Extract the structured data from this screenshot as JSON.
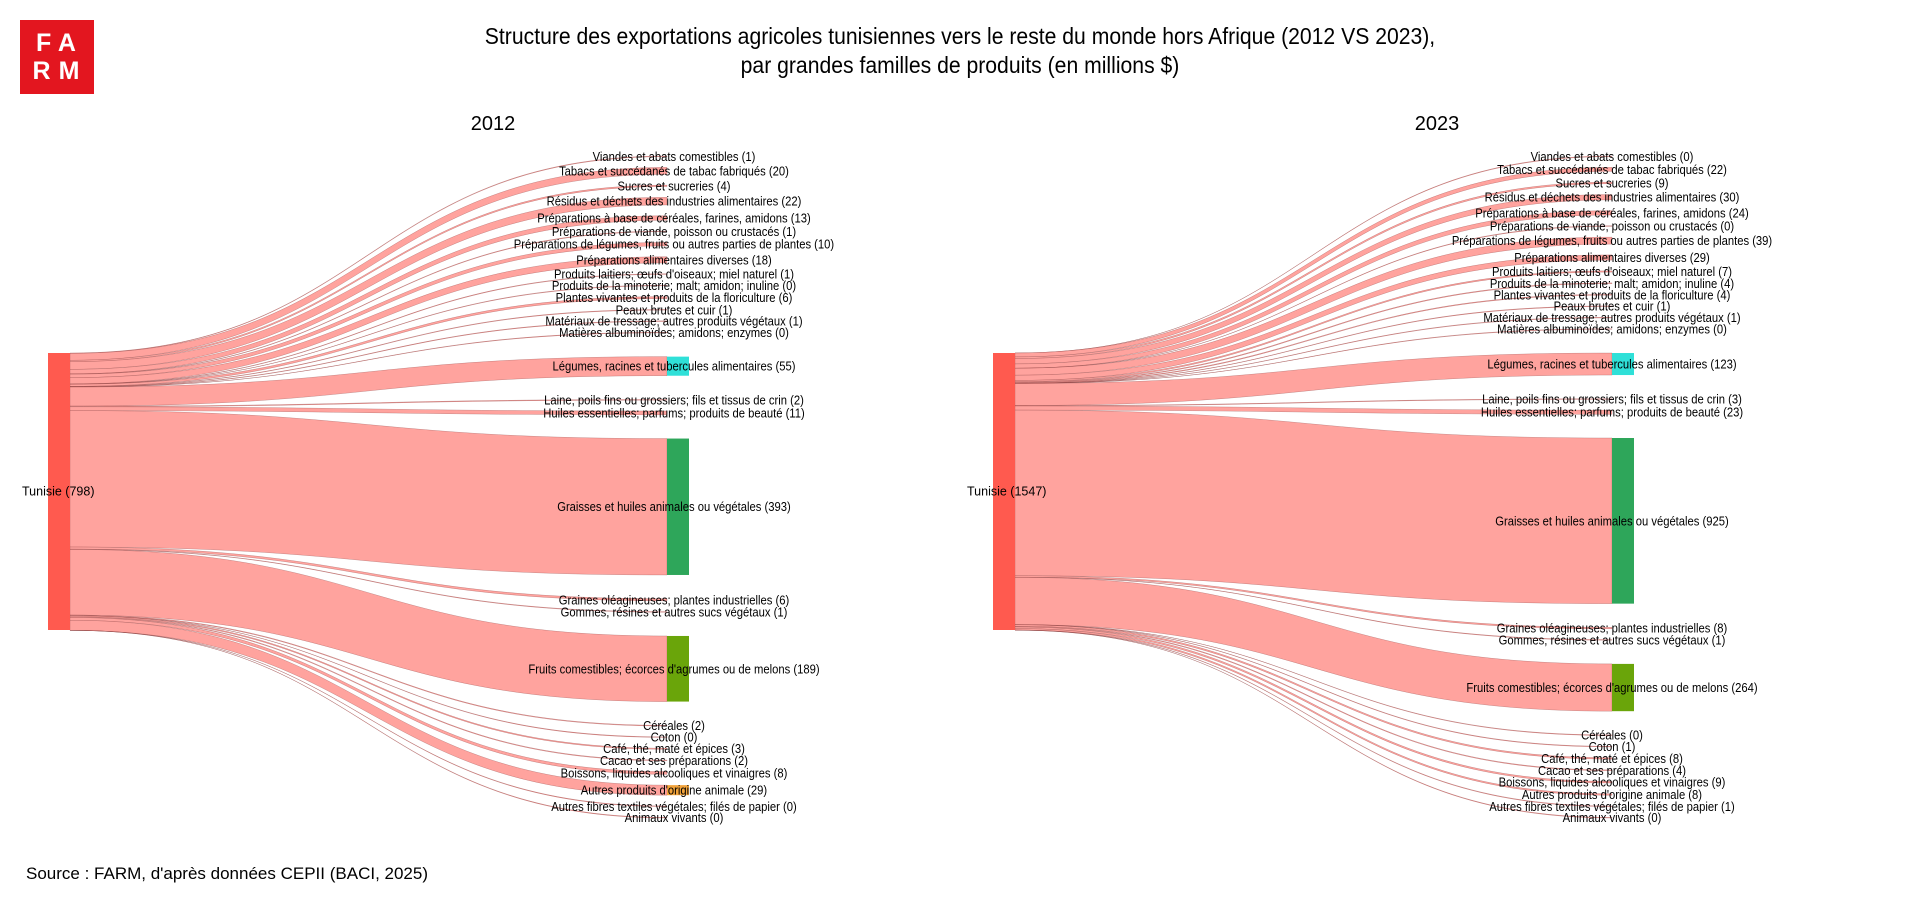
{
  "logo": {
    "line1": "FA",
    "line2": "RM",
    "color": "#e3161f"
  },
  "title": {
    "line1": "Structure des exportations agricoles tunisiennes vers le reste du monde hors Afrique (2012 VS 2023),",
    "line2": "par grandes familles de produits (en millions $)"
  },
  "source": "Source : FARM, d'après données CEPII (BACI, 2025)",
  "chart_data": [
    {
      "type": "sankey",
      "title": "2012",
      "source": {
        "label": "Tunisie (798)",
        "value": 798,
        "color": "#ff5a4f"
      },
      "link_color": "#ff9e99",
      "targets": [
        {
          "label": "Viandes et abats comestibles (1)",
          "value": 1
        },
        {
          "label": "Tabacs et succédanés de tabac fabriqués (20)",
          "value": 20
        },
        {
          "label": "Sucres et sucreries (4)",
          "value": 4
        },
        {
          "label": "Résidus et déchets des industries alimentaires (22)",
          "value": 22
        },
        {
          "label": "Préparations à base de céréales, farines, amidons (13)",
          "value": 13
        },
        {
          "label": "Préparations de viande, poisson ou crustacés (1)",
          "value": 1
        },
        {
          "label": "Préparations de légumes, fruits ou autres parties de plantes (10)",
          "value": 10
        },
        {
          "label": "Préparations alimentaires diverses (18)",
          "value": 18
        },
        {
          "label": "Produits laitiers; œufs d'oiseaux; miel naturel (1)",
          "value": 1
        },
        {
          "label": "Produits de la minoterie; malt; amidon; inuline (0)",
          "value": 0
        },
        {
          "label": "Plantes vivantes et produits de la floriculture (6)",
          "value": 6
        },
        {
          "label": "Peaux brutes et cuir (1)",
          "value": 1
        },
        {
          "label": "Matériaux de tressage; autres produits végétaux (1)",
          "value": 1
        },
        {
          "label": "Matières albuminoïdes; amidons; enzymes (0)",
          "value": 0
        },
        {
          "label": "Légumes, racines et tubercules alimentaires (55)",
          "value": 55,
          "color": "#2fe0d8"
        },
        {
          "label": "Laine, poils fins ou grossiers; fils et tissus de crin (2)",
          "value": 2
        },
        {
          "label": "Huiles essentielles; parfums; produits de beauté (11)",
          "value": 11
        },
        {
          "label": "Graisses et huiles animales ou végétales (393)",
          "value": 393,
          "color": "#2ea65a"
        },
        {
          "label": "Graines oléagineuses; plantes industrielles (6)",
          "value": 6
        },
        {
          "label": "Gommes, résines et autres sucs végétaux (1)",
          "value": 1
        },
        {
          "label": "Fruits comestibles; écorces d'agrumes ou de melons (189)",
          "value": 189,
          "color": "#6aa50a"
        },
        {
          "label": "Céréales (2)",
          "value": 2
        },
        {
          "label": "Coton (0)",
          "value": 0
        },
        {
          "label": "Café, thé, maté et épices (3)",
          "value": 3
        },
        {
          "label": "Cacao et ses préparations (2)",
          "value": 2
        },
        {
          "label": "Boissons, liquides alcooliques et vinaigres (8)",
          "value": 8
        },
        {
          "label": "Autres produits d'origine animale (29)",
          "value": 29,
          "color": "#f2a33a"
        },
        {
          "label": "Autres fibres textiles végétales; filés de papier (0)",
          "value": 0
        },
        {
          "label": "Animaux vivants (0)",
          "value": 0
        }
      ]
    },
    {
      "type": "sankey",
      "title": "2023",
      "source": {
        "label": "Tunisie (1547)",
        "value": 1547,
        "color": "#ff5a4f"
      },
      "link_color": "#ff9e99",
      "targets": [
        {
          "label": "Viandes et abats comestibles (0)",
          "value": 0
        },
        {
          "label": "Tabacs et succédanés de tabac fabriqués (22)",
          "value": 22
        },
        {
          "label": "Sucres et sucreries (9)",
          "value": 9
        },
        {
          "label": "Résidus et déchets des industries alimentaires (30)",
          "value": 30
        },
        {
          "label": "Préparations à base de céréales, farines, amidons (24)",
          "value": 24
        },
        {
          "label": "Préparations de viande, poisson ou crustacés (0)",
          "value": 0
        },
        {
          "label": "Préparations de légumes, fruits ou autres parties de plantes (39)",
          "value": 39
        },
        {
          "label": "Préparations alimentaires diverses (29)",
          "value": 29
        },
        {
          "label": "Produits laitiers; œufs d'oiseaux; miel naturel (7)",
          "value": 7
        },
        {
          "label": "Produits de la minoterie; malt; amidon; inuline (4)",
          "value": 4
        },
        {
          "label": "Plantes vivantes et produits de la floriculture (4)",
          "value": 4
        },
        {
          "label": "Peaux brutes et cuir (1)",
          "value": 1
        },
        {
          "label": "Matériaux de tressage; autres produits végétaux (1)",
          "value": 1
        },
        {
          "label": "Matières albuminoïdes; amidons; enzymes (0)",
          "value": 0
        },
        {
          "label": "Légumes, racines et tubercules alimentaires (123)",
          "value": 123,
          "color": "#2fe0d8"
        },
        {
          "label": "Laine, poils fins ou grossiers; fils et tissus de crin (3)",
          "value": 3
        },
        {
          "label": "Huiles essentielles; parfums; produits de beauté (23)",
          "value": 23
        },
        {
          "label": "Graisses et huiles animales ou végétales (925)",
          "value": 925,
          "color": "#2ea65a"
        },
        {
          "label": "Graines oléagineuses; plantes industrielles (8)",
          "value": 8
        },
        {
          "label": "Gommes, résines et autres sucs végétaux (1)",
          "value": 1
        },
        {
          "label": "Fruits comestibles; écorces d'agrumes ou de melons (264)",
          "value": 264,
          "color": "#6aa50a"
        },
        {
          "label": "Céréales (0)",
          "value": 0
        },
        {
          "label": "Coton (1)",
          "value": 1
        },
        {
          "label": "Café, thé, maté et épices (8)",
          "value": 8
        },
        {
          "label": "Cacao et ses préparations (4)",
          "value": 4
        },
        {
          "label": "Boissons, liquides alcooliques et vinaigres (9)",
          "value": 9
        },
        {
          "label": "Autres produits d'origine animale (8)",
          "value": 8
        },
        {
          "label": "Autres fibres textiles végétales; filés de papier (1)",
          "value": 1
        },
        {
          "label": "Animaux vivants (0)",
          "value": 0
        }
      ]
    }
  ]
}
